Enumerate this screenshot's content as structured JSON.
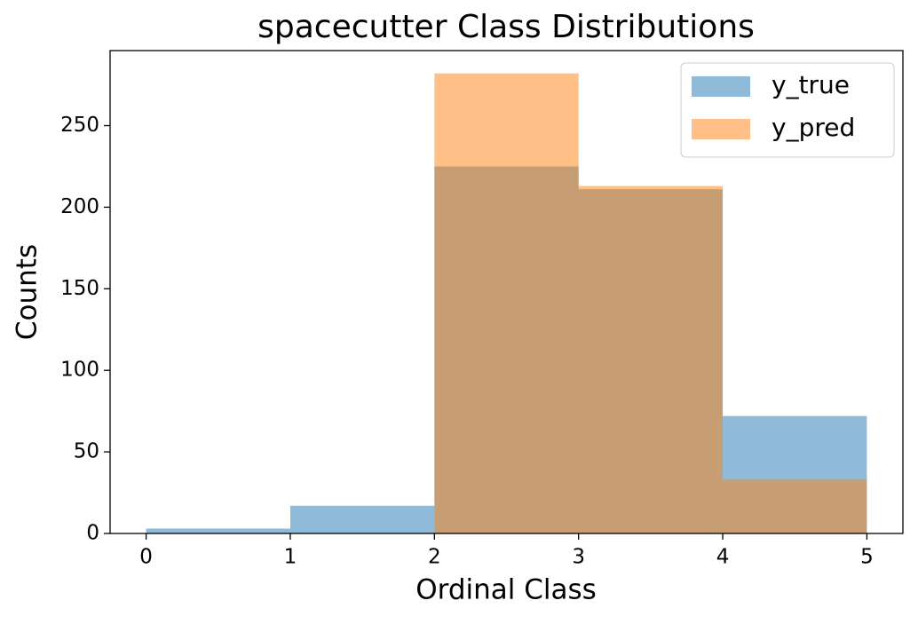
{
  "chart_data": {
    "type": "histogram",
    "title": "spacecutter Class Distributions",
    "x_label": "Ordinal Class",
    "y_label": "Counts",
    "bins": [
      0,
      1,
      2,
      3,
      4,
      5
    ],
    "series": [
      {
        "name": "y_true",
        "color": "#1f77b4",
        "alpha": 0.5,
        "values": [
          3,
          17,
          225,
          211,
          72
        ]
      },
      {
        "name": "y_pred",
        "color": "#ff7f0e",
        "alpha": 0.5,
        "values": [
          0,
          0,
          282,
          213,
          33
        ]
      }
    ],
    "xlim": [
      -0.25,
      5.25
    ],
    "xticks": [
      0,
      1,
      2,
      3,
      4,
      5
    ],
    "ylim": [
      0,
      296
    ],
    "yticks": [
      0,
      50,
      100,
      150,
      200,
      250
    ],
    "legend": "upper right"
  }
}
